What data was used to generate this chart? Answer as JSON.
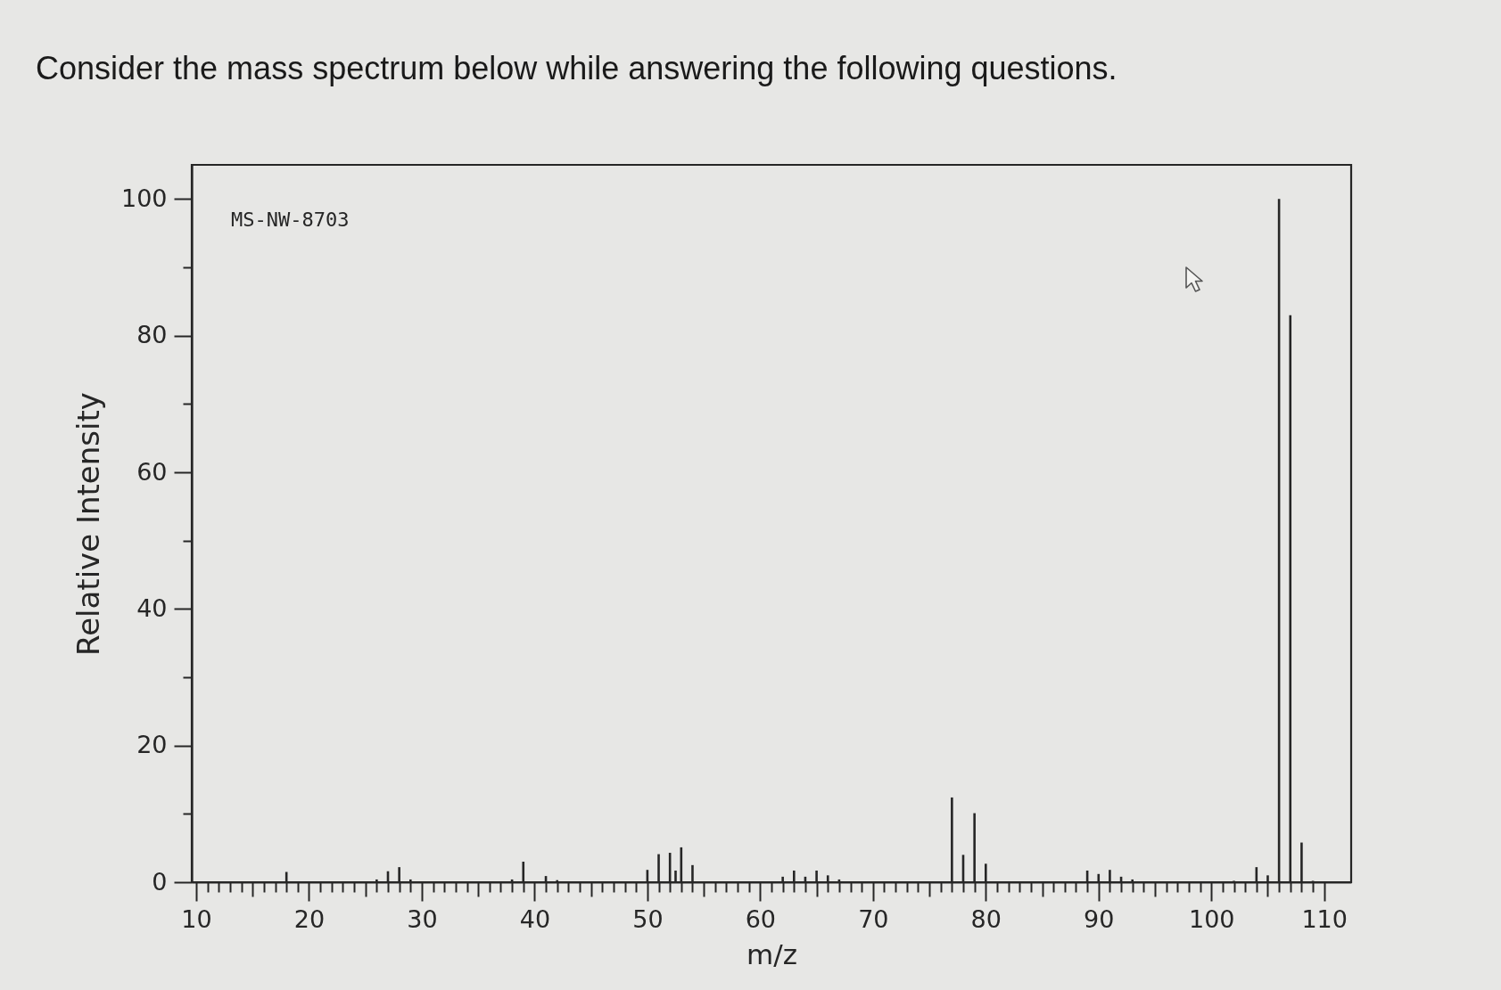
{
  "chart_data": {
    "type": "bar",
    "title": "Consider the mass spectrum below while answering the following questions.",
    "xlabel": "m/z",
    "ylabel": "Relative Intensity",
    "annotations": [
      "MS-NW-8703"
    ],
    "x": [
      18,
      26,
      27,
      28,
      29,
      38,
      39,
      41,
      42,
      50,
      51,
      52,
      52.5,
      53,
      54,
      62,
      63,
      64,
      65,
      66,
      67,
      77,
      78,
      79,
      80,
      89,
      90,
      91,
      92,
      93,
      102,
      104,
      105,
      106,
      107,
      108,
      109
    ],
    "values": [
      1.5,
      0.4,
      1.6,
      2.2,
      0.4,
      0.4,
      3.0,
      0.9,
      0.3,
      1.8,
      4.1,
      4.3,
      1.7,
      5.1,
      2.5,
      0.8,
      1.7,
      0.8,
      1.7,
      1.0,
      0.4,
      12.4,
      4.0,
      10.1,
      2.7,
      1.7,
      1.2,
      1.8,
      0.8,
      0.4,
      0.2,
      2.2,
      1.0,
      100,
      83,
      5.8,
      0.2
    ],
    "color": "#262626",
    "xlim": [
      10,
      112
    ],
    "ylim": [
      0,
      105
    ],
    "xticks": [
      10,
      {
        "value": 11,
        "label": null
      },
      {
        "value": 12,
        "label": null
      },
      {
        "value": 13,
        "label": null
      },
      {
        "value": 14,
        "label": null
      },
      {
        "value": 15,
        "label": null
      },
      {
        "value": 16,
        "label": null
      },
      {
        "value": 17,
        "label": null
      },
      {
        "value": 18,
        "label": null
      },
      {
        "value": 19,
        "label": null
      },
      20,
      {
        "value": 21,
        "label": null
      },
      {
        "value": 22,
        "label": null
      },
      {
        "value": 23,
        "label": null
      },
      {
        "value": 24,
        "label": null
      },
      {
        "value": 25,
        "label": null
      },
      {
        "value": 26,
        "label": null
      },
      {
        "value": 27,
        "label": null
      },
      {
        "value": 28,
        "label": null
      },
      {
        "value": 29,
        "label": null
      },
      30,
      {
        "value": 31,
        "label": null
      },
      {
        "value": 32,
        "label": null
      },
      {
        "value": 33,
        "label": null
      },
      {
        "value": 34,
        "label": null
      },
      {
        "value": 35,
        "label": null
      },
      {
        "value": 36,
        "label": null
      },
      {
        "value": 37,
        "label": null
      },
      {
        "value": 38,
        "label": null
      },
      {
        "value": 39,
        "label": null
      },
      40,
      {
        "value": 41,
        "label": null
      },
      {
        "value": 42,
        "label": null
      },
      {
        "value": 43,
        "label": null
      },
      {
        "value": 44,
        "label": null
      },
      {
        "value": 45,
        "label": null
      },
      {
        "value": 46,
        "label": null
      },
      {
        "value": 47,
        "label": null
      },
      {
        "value": 48,
        "label": null
      },
      {
        "value": 49,
        "label": null
      },
      50,
      {
        "value": 51,
        "label": null
      },
      {
        "value": 52,
        "label": null
      },
      {
        "value": 53,
        "label": null
      },
      {
        "value": 54,
        "label": null
      },
      {
        "value": 55,
        "label": null
      },
      {
        "value": 56,
        "label": null
      },
      {
        "value": 57,
        "label": null
      },
      {
        "value": 58,
        "label": null
      },
      {
        "value": 59,
        "label": null
      },
      60,
      {
        "value": 61,
        "label": null
      },
      {
        "value": 62,
        "label": null
      },
      {
        "value": 63,
        "label": null
      },
      {
        "value": 64,
        "label": null
      },
      {
        "value": 65,
        "label": null
      },
      {
        "value": 66,
        "label": null
      },
      {
        "value": 67,
        "label": null
      },
      {
        "value": 68,
        "label": null
      },
      {
        "value": 69,
        "label": null
      },
      70,
      {
        "value": 71,
        "label": null
      },
      {
        "value": 72,
        "label": null
      },
      {
        "value": 73,
        "label": null
      },
      {
        "value": 74,
        "label": null
      },
      {
        "value": 75,
        "label": null
      },
      {
        "value": 76,
        "label": null
      },
      {
        "value": 77,
        "label": null
      },
      {
        "value": 78,
        "label": null
      },
      {
        "value": 79,
        "label": null
      },
      80,
      {
        "value": 81,
        "label": null
      },
      {
        "value": 82,
        "label": null
      },
      {
        "value": 83,
        "label": null
      },
      {
        "value": 84,
        "label": null
      },
      {
        "value": 85,
        "label": null
      },
      {
        "value": 86,
        "label": null
      },
      {
        "value": 87,
        "label": null
      },
      {
        "value": 88,
        "label": null
      },
      {
        "value": 89,
        "label": null
      },
      90,
      {
        "value": 91,
        "label": null
      },
      {
        "value": 92,
        "label": null
      },
      {
        "value": 93,
        "label": null
      },
      {
        "value": 94,
        "label": null
      },
      {
        "value": 95,
        "label": null
      },
      {
        "value": 96,
        "label": null
      },
      {
        "value": 97,
        "label": null
      },
      {
        "value": 98,
        "label": null
      },
      {
        "value": 99,
        "label": null
      },
      100,
      {
        "value": 101,
        "label": null
      },
      {
        "value": 102,
        "label": null
      },
      {
        "value": 103,
        "label": null
      },
      {
        "value": 104,
        "label": null
      },
      {
        "value": 105,
        "label": null
      },
      {
        "value": 106,
        "label": null
      },
      {
        "value": 107,
        "label": null
      },
      {
        "value": 108,
        "label": null
      },
      {
        "value": 109,
        "label": null
      },
      110
    ],
    "yticks": [
      0,
      {
        "value": 10,
        "label": null
      },
      20,
      {
        "value": 30,
        "label": null
      },
      40,
      {
        "value": 50,
        "label": null
      },
      60,
      {
        "value": 70,
        "label": null
      },
      80,
      {
        "value": 90,
        "label": null
      },
      100
    ]
  }
}
